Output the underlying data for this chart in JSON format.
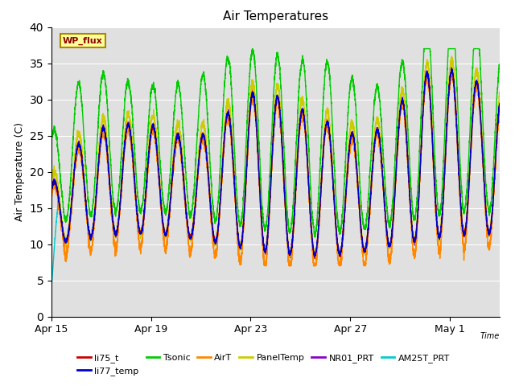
{
  "title": "Air Temperatures",
  "xlabel": "Time",
  "ylabel": "Air Temperature (C)",
  "ylim": [
    0,
    40
  ],
  "yticks": [
    0,
    5,
    10,
    15,
    20,
    25,
    30,
    35,
    40
  ],
  "xtick_labels": [
    "Apr 15",
    "Apr 19",
    "Apr 23",
    "Apr 27",
    "May 1"
  ],
  "xtick_positions_days": [
    0,
    4,
    8,
    12,
    16
  ],
  "n_days": 18,
  "annotation_text": "WP_flux",
  "bg_color": "#e0e0e0",
  "series": [
    {
      "name": "li75_t",
      "color": "#cc0000"
    },
    {
      "name": "li77_temp",
      "color": "#0000cc"
    },
    {
      "name": "Tsonic",
      "color": "#00cc00"
    },
    {
      "name": "AirT",
      "color": "#ff8800"
    },
    {
      "name": "PanelTemp",
      "color": "#cccc00"
    },
    {
      "name": "NR01_PRT",
      "color": "#8800cc"
    },
    {
      "name": "AM25T_PRT",
      "color": "#00cccc"
    }
  ],
  "legend_order": [
    "li75_t",
    "li77_temp",
    "Tsonic",
    "AirT",
    "PanelTemp",
    "NR01_PRT",
    "AM25T_PRT"
  ]
}
